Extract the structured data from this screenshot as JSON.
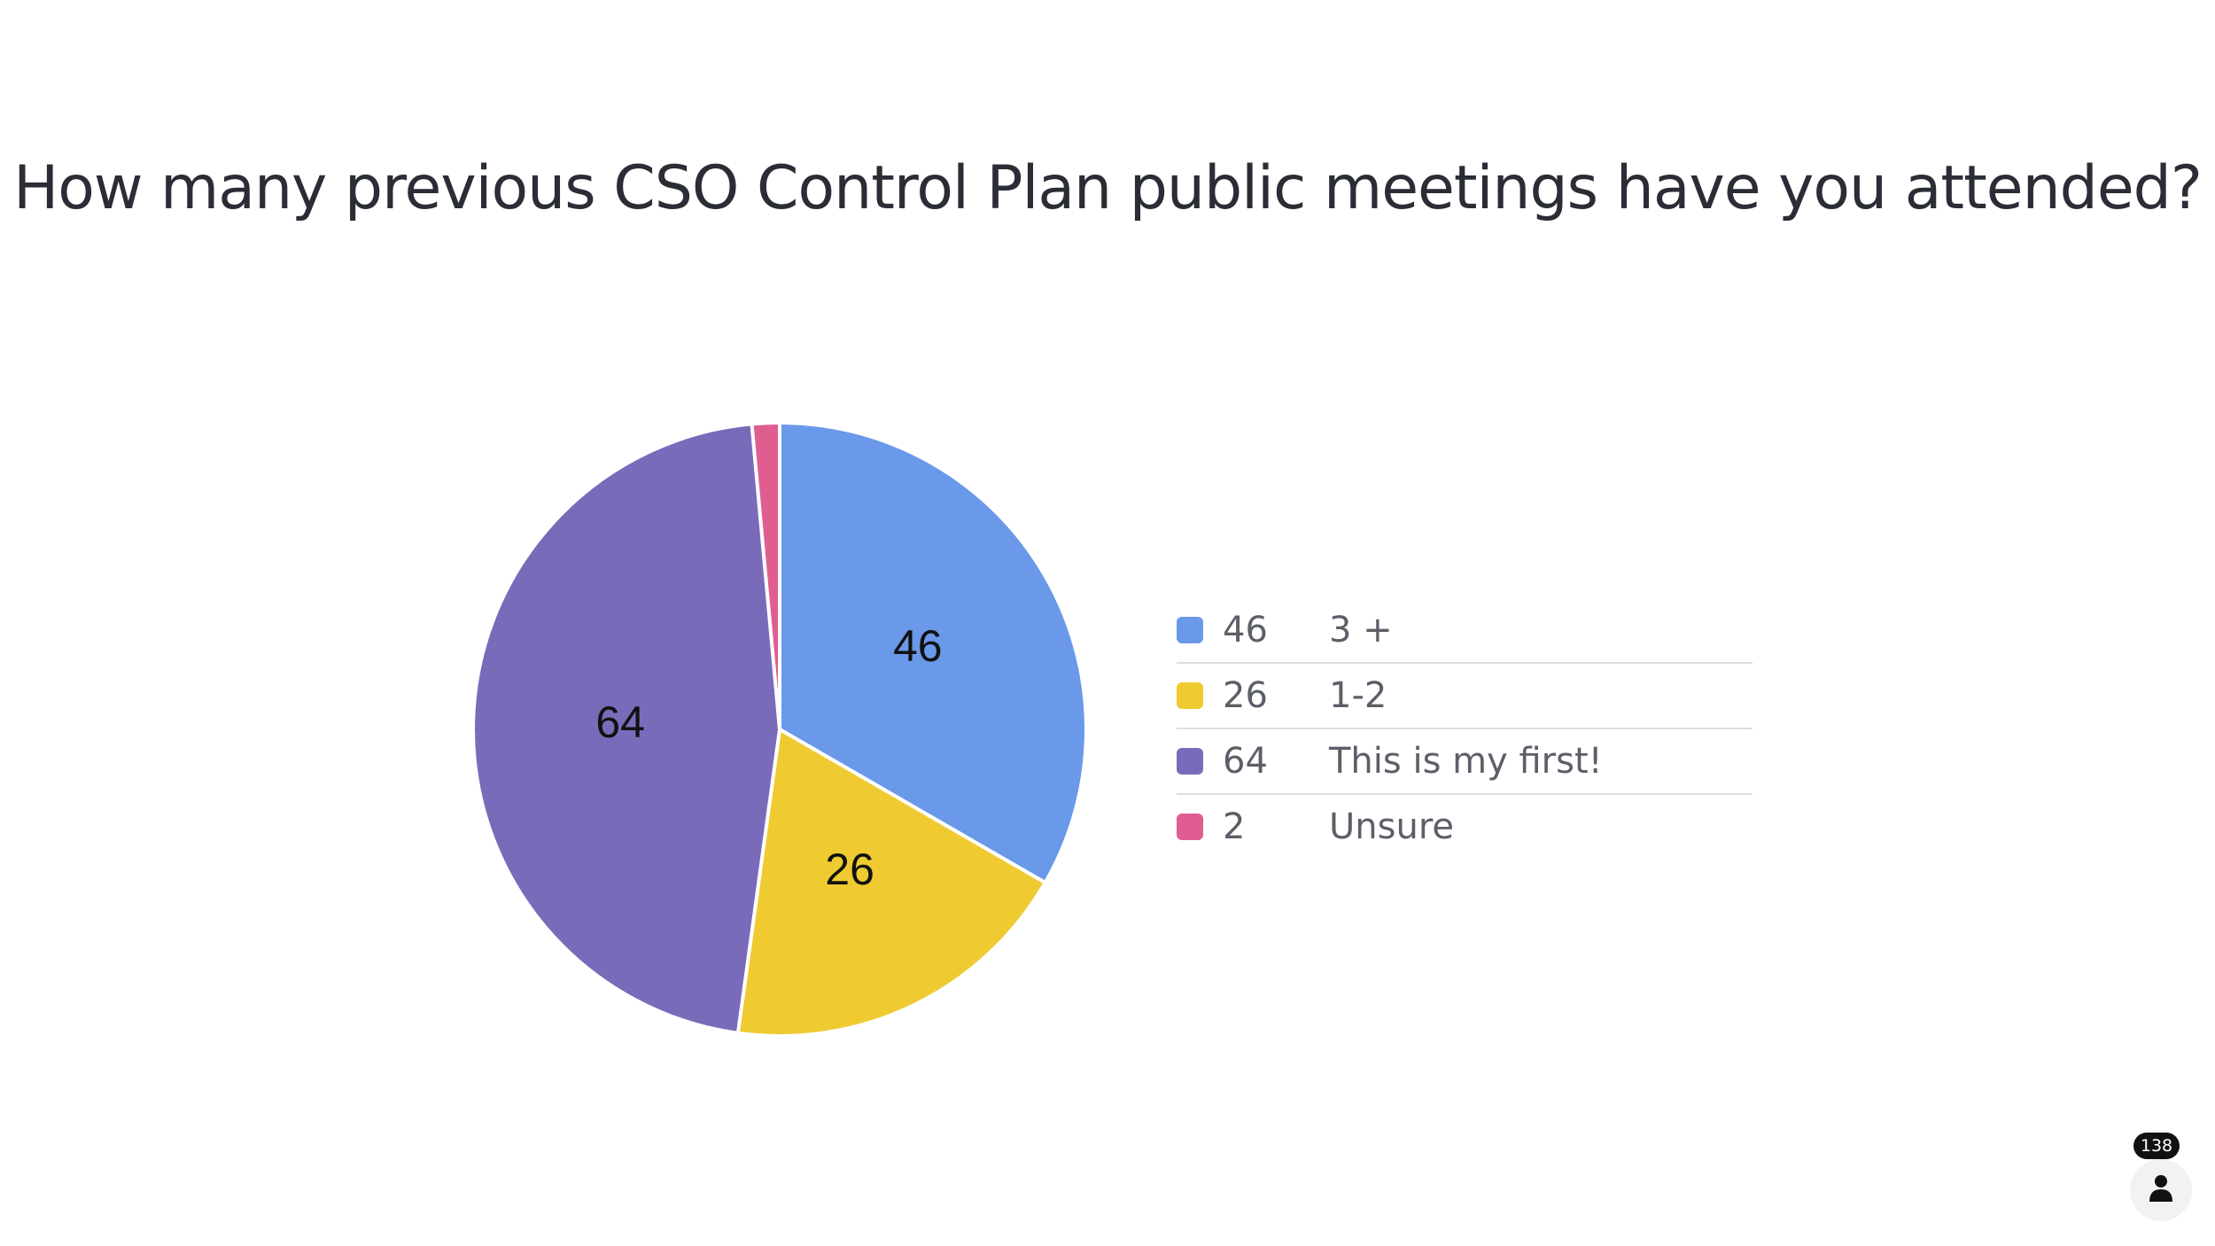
{
  "chart_data": {
    "type": "pie",
    "title": "How many previous CSO Control Plan public meetings have you attended?",
    "slices": [
      {
        "label": "3 +",
        "value": 46,
        "color": "#6a99ea"
      },
      {
        "label": "1-2",
        "value": 26,
        "color": "#efca31"
      },
      {
        "label": "This is my first!",
        "value": 64,
        "color": "#7a6bba"
      },
      {
        "label": "Unsure",
        "value": 2,
        "color": "#e05d92"
      }
    ],
    "legend_position": "right"
  },
  "participants": {
    "count": "138",
    "icon": "person-icon"
  }
}
